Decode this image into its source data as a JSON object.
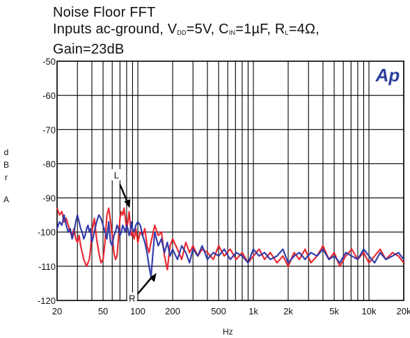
{
  "title": {
    "line1": "Noise Floor FFT",
    "line2_prefix": "Inputs ac-ground, V",
    "vdd_sub": "DD",
    "vdd_val": "=5V, C",
    "cin_sub": "IN",
    "cin_val": "=1µF, R",
    "rl_sub": "L",
    "rl_val": "=4Ω,",
    "line3": "Gain=23dB"
  },
  "logo": "Ap",
  "colors": {
    "red": "#e8202a",
    "blue": "#2a35a8",
    "grid": "#000000"
  },
  "chart_data": {
    "type": "line",
    "xscale": "log",
    "xlim": [
      20,
      20000
    ],
    "ylim": [
      -120,
      -50
    ],
    "grid": true,
    "xlabel": "Hz",
    "ylabel": [
      "d",
      "B",
      "r",
      "",
      "A"
    ],
    "x_ticks": [
      20,
      50,
      100,
      200,
      500,
      1000,
      2000,
      5000,
      10000,
      20000
    ],
    "x_tick_labels": [
      "20",
      "50",
      "100",
      "200",
      "500",
      "1k",
      "2k",
      "5k",
      "10k",
      "20k"
    ],
    "y_ticks": [
      -50,
      -60,
      -70,
      -80,
      -90,
      -100,
      -110,
      -120
    ],
    "y_tick_labels": [
      "-50",
      "-60",
      "-70",
      "-80",
      "-90",
      "-100",
      "-110",
      "-120"
    ],
    "annotations": [
      {
        "text": "L",
        "x": 85,
        "y": -93
      },
      {
        "text": "R",
        "x": 145,
        "y": -114
      }
    ],
    "series": [
      {
        "name": "L",
        "color": "#e8202a",
        "x": [
          20,
          21,
          22,
          23,
          24,
          25,
          26,
          27,
          28,
          29,
          30,
          31,
          32,
          33,
          34,
          35,
          36,
          37,
          38,
          39,
          40,
          42,
          44,
          46,
          48,
          50,
          52,
          54,
          56,
          58,
          60,
          62,
          64,
          66,
          68,
          70,
          72,
          74,
          76,
          78,
          80,
          82,
          84,
          86,
          88,
          90,
          93,
          96,
          100,
          105,
          110,
          115,
          120,
          125,
          130,
          140,
          150,
          160,
          170,
          180,
          190,
          200,
          220,
          240,
          260,
          280,
          300,
          330,
          360,
          400,
          450,
          500,
          560,
          630,
          710,
          800,
          900,
          1000,
          1120,
          1250,
          1400,
          1600,
          1800,
          2000,
          2250,
          2500,
          2800,
          3150,
          3550,
          4000,
          4500,
          5000,
          5600,
          6300,
          7100,
          8000,
          9000,
          10000,
          11200,
          12500,
          14000,
          16000,
          18000,
          20000
        ],
        "y": [
          -93,
          -95,
          -94,
          -97,
          -96,
          -98,
          -100,
          -101,
          -99,
          -102,
          -103,
          -101,
          -104,
          -106,
          -108,
          -109,
          -110,
          -109,
          -108,
          -105,
          -100,
          -96,
          -102,
          -106,
          -109,
          -108,
          -103,
          -95,
          -93,
          -97,
          -101,
          -106,
          -108,
          -107,
          -102,
          -96,
          -94,
          -95,
          -93,
          -96,
          -99,
          -97,
          -94,
          -98,
          -101,
          -100,
          -102,
          -99,
          -103,
          -100,
          -101,
          -99,
          -104,
          -106,
          -103,
          -98,
          -101,
          -100,
          -107,
          -111,
          -104,
          -102,
          -105,
          -108,
          -103,
          -106,
          -104,
          -107,
          -105,
          -106,
          -108,
          -104,
          -107,
          -105,
          -108,
          -106,
          -109,
          -107,
          -105,
          -108,
          -106,
          -109,
          -107,
          -110,
          -106,
          -108,
          -105,
          -109,
          -107,
          -104,
          -108,
          -106,
          -110,
          -107,
          -105,
          -108,
          -106,
          -109,
          -107,
          -105,
          -108,
          -106,
          -107,
          -109
        ]
      },
      {
        "name": "R",
        "color": "#2a35a8",
        "x": [
          20,
          21,
          22,
          23,
          24,
          25,
          26,
          27,
          28,
          29,
          30,
          31,
          32,
          33,
          34,
          35,
          36,
          37,
          38,
          39,
          40,
          42,
          44,
          46,
          48,
          50,
          52,
          54,
          56,
          58,
          60,
          62,
          64,
          66,
          68,
          70,
          72,
          74,
          76,
          78,
          80,
          82,
          84,
          86,
          88,
          90,
          93,
          96,
          100,
          105,
          110,
          115,
          120,
          125,
          130,
          140,
          150,
          160,
          170,
          180,
          190,
          200,
          220,
          240,
          260,
          280,
          300,
          330,
          360,
          400,
          450,
          500,
          560,
          630,
          710,
          800,
          900,
          1000,
          1120,
          1250,
          1400,
          1600,
          1800,
          2000,
          2250,
          2500,
          2800,
          3150,
          3550,
          4000,
          4500,
          5000,
          5600,
          6300,
          7100,
          8000,
          9000,
          10000,
          11200,
          12500,
          14000,
          16000,
          18000,
          20000
        ],
        "y": [
          -99,
          -97,
          -98,
          -95,
          -98,
          -100,
          -99,
          -102,
          -100,
          -97,
          -95,
          -97,
          -99,
          -100,
          -102,
          -101,
          -99,
          -98,
          -100,
          -99,
          -103,
          -100,
          -97,
          -95,
          -96,
          -98,
          -100,
          -102,
          -97,
          -103,
          -104,
          -101,
          -100,
          -98,
          -99,
          -101,
          -100,
          -98,
          -99,
          -100,
          -98,
          -99,
          -101,
          -100,
          -97,
          -99,
          -100,
          -98,
          -97,
          -98,
          -101,
          -103,
          -106,
          -110,
          -113,
          -100,
          -104,
          -102,
          -106,
          -103,
          -107,
          -105,
          -108,
          -104,
          -106,
          -109,
          -105,
          -107,
          -104,
          -108,
          -106,
          -107,
          -105,
          -108,
          -106,
          -107,
          -109,
          -105,
          -107,
          -106,
          -108,
          -107,
          -105,
          -109,
          -107,
          -106,
          -108,
          -106,
          -107,
          -105,
          -108,
          -107,
          -109,
          -106,
          -107,
          -108,
          -105,
          -107,
          -109,
          -106,
          -108,
          -107,
          -106,
          -108
        ]
      }
    ]
  }
}
